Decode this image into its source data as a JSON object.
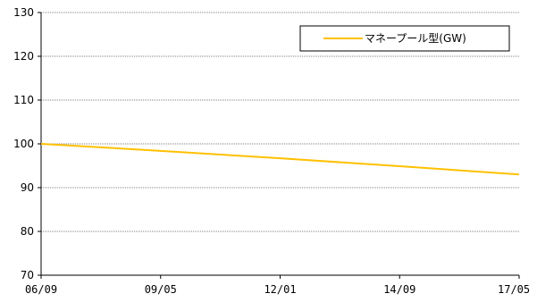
{
  "chart_data": {
    "type": "line",
    "x": [
      "06/09",
      "09/05",
      "12/01",
      "14/09",
      "17/05"
    ],
    "series": [
      {
        "name": "マネープール型(GW)",
        "values": [
          100,
          98.4,
          96.7,
          94.9,
          93.0
        ],
        "color": "#ffc000"
      }
    ],
    "ylim": [
      70,
      130
    ],
    "yticks": [
      70,
      80,
      90,
      100,
      110,
      120,
      130
    ],
    "title": "",
    "xlabel": "",
    "ylabel": "",
    "grid": "horizontal-dotted",
    "legend_position": "top-right"
  }
}
